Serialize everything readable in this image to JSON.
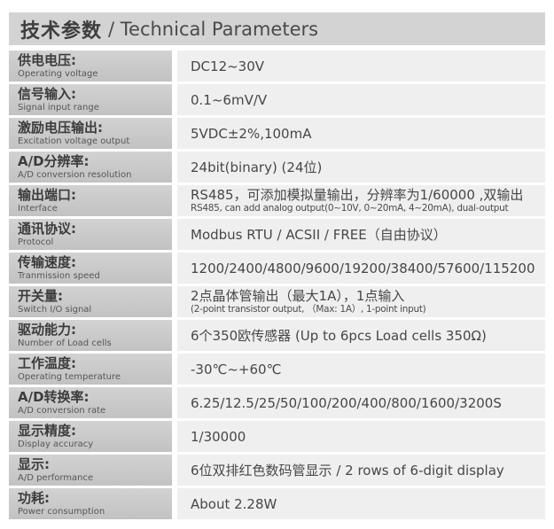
{
  "header": {
    "title_zh": "技术参数",
    "title_en": "/ Technical Parameters"
  },
  "colors": {
    "header_bg": "#d3d3d3",
    "label_cell_bg": "#c8c8c8",
    "value_cell_bg": "#efefef",
    "text": "#474747"
  },
  "rows": [
    {
      "label_zh": "供电电压:",
      "label_en": "Operating voltage",
      "value": "DC12~30V"
    },
    {
      "label_zh": "信号输入:",
      "label_en": "Signal input range",
      "value": "0.1~6mV/V"
    },
    {
      "label_zh": "激励电压输出:",
      "label_en": "Excitation voltage output",
      "value": "5VDC±2%,100mA"
    },
    {
      "label_zh": "A/D分辨率:",
      "label_en": "A/D conversion resolution",
      "value": "24bit(binary) (24位)"
    },
    {
      "label_zh": "输出端口:",
      "label_en": "Interface",
      "value": "RS485，可添加模拟量输出，分辨率为1/60000 ,双输出",
      "value_sub": "RS485, can add analog output(0~10V, 0~20mA, 4~20mA), dual-output"
    },
    {
      "label_zh": "通讯协议:",
      "label_en": "Protocol",
      "value": "Modbus RTU / ACSII / FREE（自由协议）"
    },
    {
      "label_zh": "传输速度:",
      "label_en": "Tranmission speed",
      "value": "1200/2400/4800/9600/19200/38400/57600/115200"
    },
    {
      "label_zh": "开关量:",
      "label_en": "Switch I/O signal",
      "value": "2点晶体管输出（最大1A），1点输入",
      "value_sub": "(2-point transistor output, （Max: 1A）, 1-point input)"
    },
    {
      "label_zh": "驱动能力:",
      "label_en": "Number of Load cells",
      "value": "6个350欧传感器 (Up to 6pcs Load cells 350Ω)"
    },
    {
      "label_zh": "工作温度:",
      "label_en": "Operating temperature",
      "value": "-30℃~+60℃"
    },
    {
      "label_zh": "A/D转换率:",
      "label_en": "A/D conversion rate",
      "value": "6.25/12.5/25/50/100/200/400/800/1600/3200S"
    },
    {
      "label_zh": "显示精度:",
      "label_en": "Display accuracy",
      "value": "1/30000"
    },
    {
      "label_zh": "显示:",
      "label_en": "A/D performance",
      "value": "6位双排红色数码管显示 / 2 rows of 6-digit display"
    },
    {
      "label_zh": "功耗:",
      "label_en": "Power consumption",
      "value": "About 2.28W"
    }
  ]
}
